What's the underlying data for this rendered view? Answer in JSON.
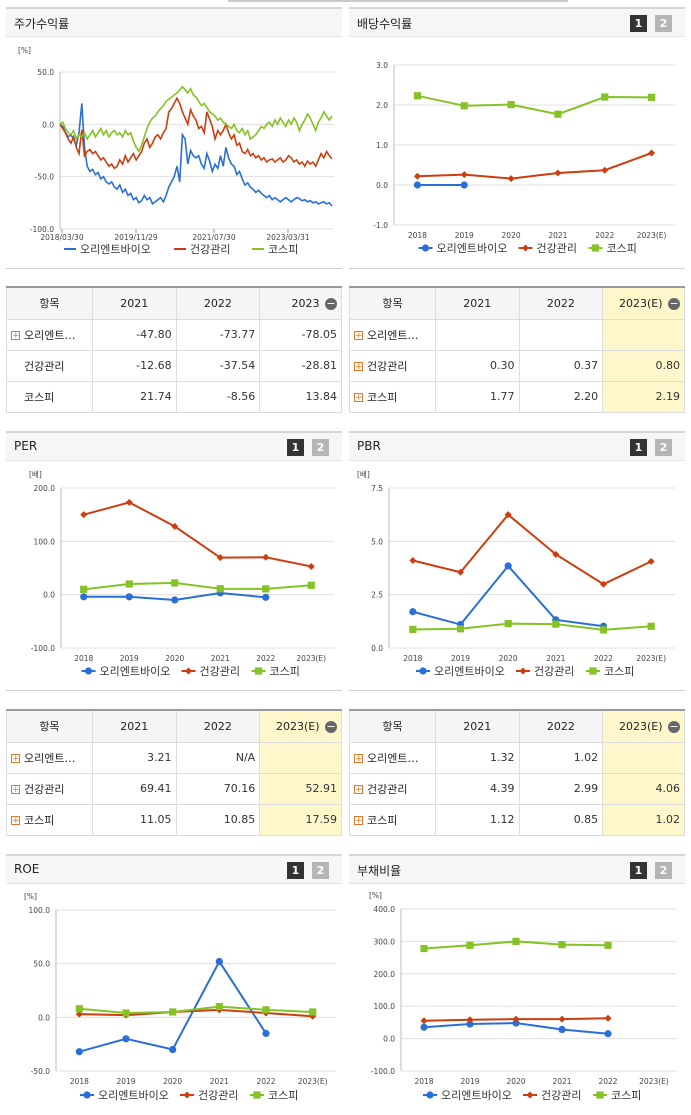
{
  "colors": {
    "bio": "#2a6fd6",
    "health": "#cc3d0f",
    "kospi": "#84c225"
  },
  "legend_names": [
    "오리엔트바이오",
    "건강관리",
    "코스피"
  ],
  "panels": {
    "stock": {
      "title": "주가수익률"
    },
    "dividend": {
      "title": "배당수익률",
      "btn1": "1",
      "btn2": "2"
    },
    "per": {
      "title": "PER",
      "btn1": "1",
      "btn2": "2"
    },
    "pbr": {
      "title": "PBR",
      "btn1": "1",
      "btn2": "2"
    },
    "roe": {
      "title": "ROE",
      "btn1": "1",
      "btn2": "2"
    },
    "debt": {
      "title": "부채비율",
      "btn1": "1",
      "btn2": "2"
    }
  },
  "tables": {
    "stock": {
      "headers": [
        "항목",
        "2021",
        "2022",
        "2023"
      ],
      "rows": [
        {
          "label": "오리엔트…",
          "values": [
            "-47.80",
            "-73.77",
            "-78.05"
          ],
          "plus": true
        },
        {
          "label": "건강관리",
          "values": [
            "-12.68",
            "-37.54",
            "-28.81"
          ],
          "plus": false
        },
        {
          "label": "코스피",
          "values": [
            "21.74",
            "-8.56",
            "13.84"
          ],
          "plus": false
        }
      ]
    },
    "dividend": {
      "headers": [
        "항목",
        "2021",
        "2022",
        "2023(E)"
      ],
      "rows": [
        {
          "label": "오리엔트…",
          "values": [
            "",
            "",
            ""
          ],
          "plus": true
        },
        {
          "label": "건강관리",
          "values": [
            "0.30",
            "0.37",
            "0.80"
          ],
          "plus": true
        },
        {
          "label": "코스피",
          "values": [
            "1.77",
            "2.20",
            "2.19"
          ],
          "plus": true
        }
      ]
    },
    "per": {
      "headers": [
        "항목",
        "2021",
        "2022",
        "2023(E)"
      ],
      "rows": [
        {
          "label": "오리엔트…",
          "values": [
            "3.21",
            "N/A",
            ""
          ],
          "plus": true
        },
        {
          "label": "건강관리",
          "values": [
            "69.41",
            "70.16",
            "52.91"
          ],
          "plus": true
        },
        {
          "label": "코스피",
          "values": [
            "11.05",
            "10.85",
            "17.59"
          ],
          "plus": true
        }
      ]
    },
    "pbr": {
      "headers": [
        "항목",
        "2021",
        "2022",
        "2023(E)"
      ],
      "rows": [
        {
          "label": "오리엔트…",
          "values": [
            "1.32",
            "1.02",
            ""
          ],
          "plus": true
        },
        {
          "label": "건강관리",
          "values": [
            "4.39",
            "2.99",
            "4.06"
          ],
          "plus": true
        },
        {
          "label": "코스피",
          "values": [
            "1.12",
            "0.85",
            "1.02"
          ],
          "plus": true
        }
      ]
    }
  },
  "chart_data": [
    {
      "id": "stock",
      "type": "line",
      "title": "주가수익률",
      "ylabel": "[%]",
      "ylim": [
        -100,
        50
      ],
      "yticks": [
        "50.0",
        "0.0",
        "-50.0",
        "-100.0"
      ],
      "x_ticks": [
        "2018/03/30",
        "2019/11/29",
        "2021/07/30",
        "2023/03/31"
      ],
      "series": [
        {
          "name": "오리엔트바이오",
          "values": [
            0,
            -2,
            -8,
            -12,
            -10,
            -14,
            -20,
            -8,
            20,
            -22,
            -40,
            -45,
            -43,
            -48,
            -46,
            -52,
            -50,
            -55,
            -57,
            -55,
            -60,
            -62,
            -58,
            -65,
            -62,
            -68,
            -66,
            -72,
            -70,
            -75,
            -73,
            -68,
            -72,
            -70,
            -76,
            -74,
            -72,
            -70,
            -74,
            -68,
            -60,
            -55,
            -50,
            -40,
            -55,
            -10,
            -14,
            -38,
            -25,
            -30,
            -32,
            -30,
            -38,
            -42,
            -28,
            -35,
            -45,
            -38,
            -42,
            -30,
            -40,
            -22,
            -32,
            -38,
            -40,
            -48,
            -45,
            -52,
            -58,
            -56,
            -60,
            -62,
            -65,
            -63,
            -66,
            -68,
            -70,
            -68,
            -72,
            -70,
            -72,
            -74,
            -72,
            -70,
            -72,
            -74,
            -72,
            -70,
            -71,
            -73,
            -72,
            -74,
            -73,
            -75,
            -74,
            -76,
            -75,
            -74,
            -76,
            -75,
            -78
          ]
        },
        {
          "name": "건강관리",
          "values": [
            0,
            -4,
            -8,
            -14,
            -18,
            -12,
            -22,
            -28,
            -5,
            -30,
            -26,
            -24,
            -28,
            -26,
            -30,
            -34,
            -32,
            -36,
            -40,
            -38,
            -42,
            -40,
            -34,
            -38,
            -30,
            -36,
            -32,
            -28,
            -34,
            -30,
            -26,
            -18,
            -14,
            -22,
            -18,
            -12,
            -10,
            -14,
            -8,
            -4,
            12,
            15,
            20,
            25,
            20,
            12,
            6,
            0,
            14,
            8,
            4,
            -4,
            -2,
            -8,
            12,
            5,
            -2,
            -14,
            -6,
            -10,
            -6,
            0,
            -8,
            -14,
            -10,
            -20,
            -18,
            -26,
            -28,
            -24,
            -30,
            -28,
            -32,
            -30,
            -34,
            -32,
            -36,
            -34,
            -33,
            -36,
            -34,
            -32,
            -36,
            -34,
            -30,
            -32,
            -36,
            -34,
            -38,
            -36,
            -40,
            -35,
            -38,
            -36,
            -40,
            -34,
            -28,
            -32,
            -26,
            -30,
            -33
          ]
        },
        {
          "name": "코스피",
          "values": [
            0,
            2,
            -4,
            -8,
            -10,
            -6,
            -14,
            -10,
            -12,
            -8,
            -14,
            -10,
            -6,
            -12,
            -8,
            -4,
            -10,
            -6,
            -12,
            -8,
            -6,
            -10,
            -8,
            -12,
            -6,
            -10,
            -8,
            -16,
            -22,
            -26,
            -20,
            -12,
            -4,
            2,
            6,
            8,
            12,
            15,
            18,
            22,
            24,
            26,
            28,
            30,
            33,
            36,
            33,
            30,
            34,
            28,
            26,
            22,
            18,
            20,
            16,
            12,
            10,
            8,
            4,
            6,
            2,
            0,
            -2,
            -4,
            0,
            -6,
            -8,
            -4,
            -10,
            -6,
            -14,
            -12,
            -10,
            -6,
            -2,
            -4,
            0,
            2,
            -2,
            4,
            0,
            6,
            2,
            -2,
            4,
            0,
            6,
            2,
            -6,
            0,
            4,
            10,
            6,
            0,
            -6,
            2,
            6,
            12,
            8,
            4,
            8
          ]
        }
      ]
    },
    {
      "id": "dividend",
      "type": "line",
      "title": "배당수익률",
      "ylim": [
        -1,
        3
      ],
      "yticks": [
        "3.0",
        "2.0",
        "1.0",
        "0.0",
        "-1.0"
      ],
      "categories": [
        "2018",
        "2019",
        "2020",
        "2021",
        "2022",
        "2023(E)"
      ],
      "series": [
        {
          "name": "오리엔트바이오",
          "values": [
            0,
            0,
            null,
            null,
            null,
            null
          ]
        },
        {
          "name": "건강관리",
          "values": [
            0.22,
            0.26,
            0.16,
            0.3,
            0.37,
            0.8
          ]
        },
        {
          "name": "코스피",
          "values": [
            2.23,
            1.98,
            2.01,
            1.77,
            2.2,
            2.19
          ]
        }
      ]
    },
    {
      "id": "per",
      "type": "line",
      "title": "PER",
      "ylabel": "[배]",
      "ylim": [
        -100,
        200
      ],
      "yticks": [
        "200.0",
        "100.0",
        "0.0",
        "-100.0"
      ],
      "categories": [
        "2018",
        "2019",
        "2020",
        "2021",
        "2022",
        "2023(E)"
      ],
      "series": [
        {
          "name": "오리엔트바이오",
          "values": [
            -4,
            -4,
            -10,
            3.21,
            -5,
            null
          ]
        },
        {
          "name": "건강관리",
          "values": [
            150,
            173,
            128,
            69.41,
            70.16,
            52.91
          ]
        },
        {
          "name": "코스피",
          "values": [
            10,
            20,
            22,
            11.05,
            10.85,
            17.59
          ]
        }
      ]
    },
    {
      "id": "pbr",
      "type": "line",
      "title": "PBR",
      "ylabel": "[배]",
      "ylim": [
        0,
        7.5
      ],
      "yticks": [
        "7.5",
        "5.0",
        "2.5",
        "0.0"
      ],
      "categories": [
        "2018",
        "2019",
        "2020",
        "2021",
        "2022",
        "2023(E)"
      ],
      "series": [
        {
          "name": "오리엔트바이오",
          "values": [
            1.7,
            1.1,
            3.85,
            1.32,
            1.02,
            null
          ]
        },
        {
          "name": "건강관리",
          "values": [
            4.1,
            3.55,
            6.25,
            4.39,
            2.99,
            4.06
          ]
        },
        {
          "name": "코스피",
          "values": [
            0.87,
            0.9,
            1.14,
            1.12,
            0.85,
            1.02
          ]
        }
      ]
    },
    {
      "id": "roe",
      "type": "line",
      "title": "ROE",
      "ylabel": "[%]",
      "ylim": [
        -50,
        100
      ],
      "yticks": [
        "100.0",
        "50.0",
        "0.0",
        "-50.0"
      ],
      "categories": [
        "2018",
        "2019",
        "2020",
        "2021",
        "2022",
        "2023(E)"
      ],
      "series": [
        {
          "name": "오리엔트바이오",
          "values": [
            -32,
            -20,
            -30,
            52,
            -15,
            null
          ]
        },
        {
          "name": "건강관리",
          "values": [
            3,
            2,
            5,
            7,
            4,
            1
          ]
        },
        {
          "name": "코스피",
          "values": [
            8,
            4,
            5,
            10,
            7,
            5
          ]
        }
      ]
    },
    {
      "id": "debt",
      "type": "line",
      "title": "부채비율",
      "ylabel": "[%]",
      "ylim": [
        -100,
        400
      ],
      "yticks": [
        "400.0",
        "300.0",
        "200.0",
        "100.0",
        "0.0",
        "-100.0"
      ],
      "categories": [
        "2018",
        "2019",
        "2020",
        "2021",
        "2022",
        "2023(E)"
      ],
      "series": [
        {
          "name": "오리엔트바이오",
          "values": [
            35,
            45,
            48,
            28,
            15,
            null
          ]
        },
        {
          "name": "건강관리",
          "values": [
            55,
            58,
            60,
            60,
            63,
            null
          ]
        },
        {
          "name": "코스피",
          "values": [
            278,
            288,
            300,
            290,
            288,
            null
          ]
        }
      ]
    }
  ]
}
